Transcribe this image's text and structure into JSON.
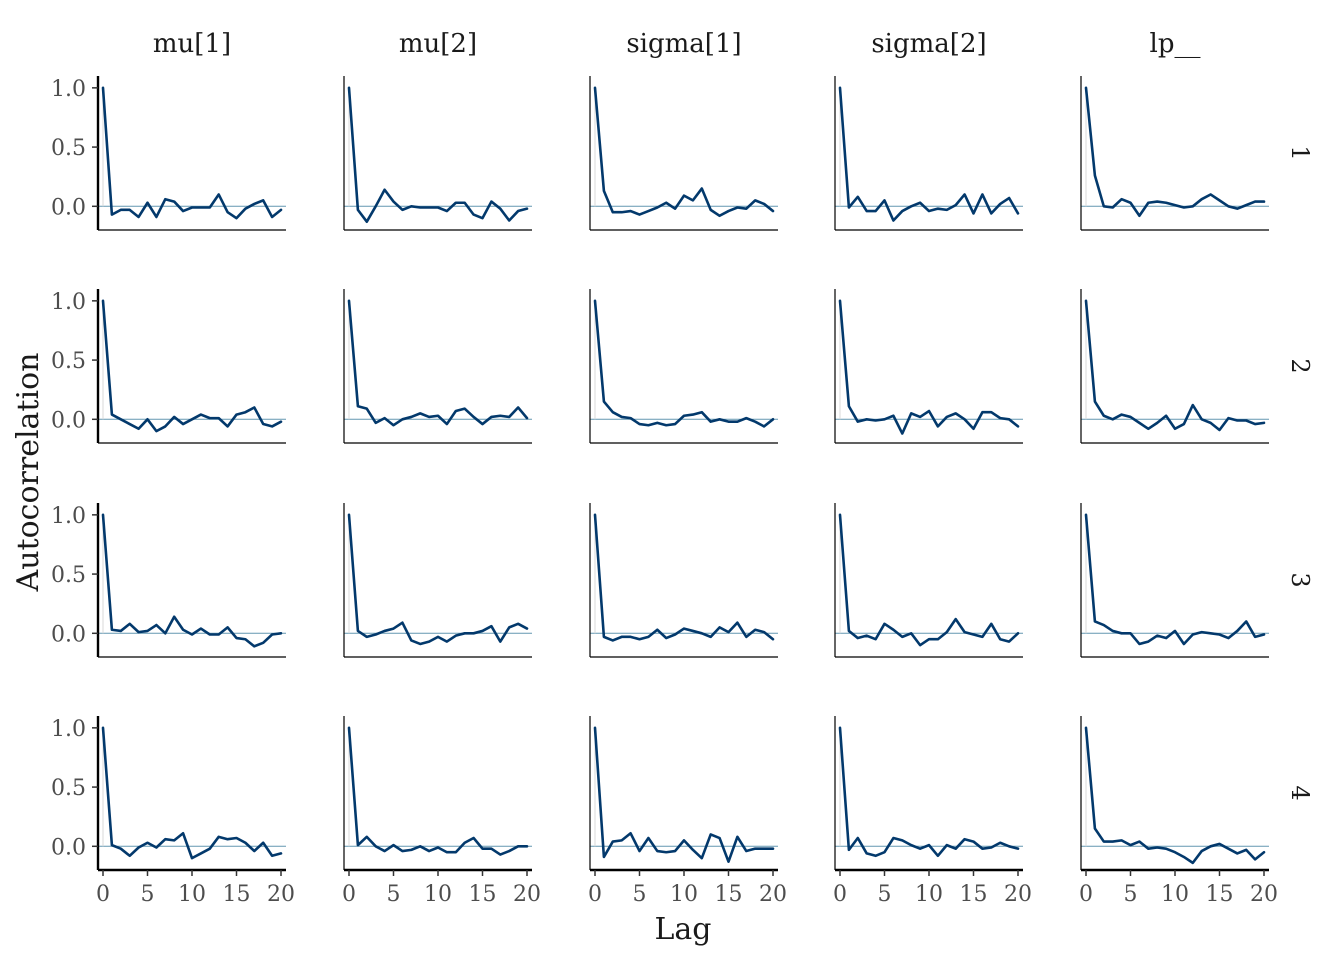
{
  "chart_data": {
    "type": "line",
    "xlabel": "Lag",
    "ylabel": "Autocorrelation",
    "columns": [
      "mu[1]",
      "mu[2]",
      "sigma[1]",
      "sigma[2]",
      "lp__"
    ],
    "rows": [
      "1",
      "2",
      "3",
      "4"
    ],
    "x": [
      0,
      1,
      2,
      3,
      4,
      5,
      6,
      7,
      8,
      9,
      10,
      11,
      12,
      13,
      14,
      15,
      16,
      17,
      18,
      19,
      20
    ],
    "xlim": [
      0,
      20
    ],
    "xticks": [
      0,
      5,
      10,
      15,
      20
    ],
    "ylim": [
      -0.2,
      1.1
    ],
    "yticks": [
      0.0,
      0.5,
      1.0
    ],
    "ytick_labels": [
      "0.0",
      "0.5",
      "1.0"
    ],
    "reference_line_y": 0.0,
    "series_color": "#03396c",
    "reference_color": "#6497b1",
    "panels": [
      [
        [
          1.0,
          -0.07,
          -0.03,
          -0.03,
          -0.09,
          0.03,
          -0.09,
          0.06,
          0.04,
          -0.04,
          -0.01,
          -0.01,
          -0.01,
          0.1,
          -0.05,
          -0.1,
          -0.02,
          0.02,
          0.05,
          -0.09,
          -0.03
        ],
        [
          1.0,
          -0.03,
          -0.13,
          0.0,
          0.14,
          0.04,
          -0.03,
          0.0,
          -0.01,
          -0.01,
          -0.01,
          -0.04,
          0.03,
          0.03,
          -0.07,
          -0.1,
          0.04,
          -0.02,
          -0.12,
          -0.04,
          -0.02
        ],
        [
          1.0,
          0.13,
          -0.05,
          -0.05,
          -0.04,
          -0.07,
          -0.04,
          -0.01,
          0.03,
          -0.02,
          0.09,
          0.05,
          0.15,
          -0.03,
          -0.08,
          -0.04,
          -0.01,
          -0.02,
          0.05,
          0.02,
          -0.04
        ],
        [
          1.0,
          -0.01,
          0.08,
          -0.04,
          -0.04,
          0.05,
          -0.12,
          -0.04,
          0.0,
          0.03,
          -0.04,
          -0.02,
          -0.03,
          0.01,
          0.1,
          -0.06,
          0.1,
          -0.06,
          0.02,
          0.07,
          -0.06
        ],
        [
          1.0,
          0.26,
          0.0,
          -0.01,
          0.06,
          0.03,
          -0.08,
          0.03,
          0.04,
          0.03,
          0.01,
          -0.01,
          0.0,
          0.06,
          0.1,
          0.05,
          0.0,
          -0.02,
          0.01,
          0.04,
          0.04
        ]
      ],
      [
        [
          1.0,
          0.04,
          0.0,
          -0.04,
          -0.08,
          0.0,
          -0.1,
          -0.06,
          0.02,
          -0.04,
          0.0,
          0.04,
          0.01,
          0.01,
          -0.06,
          0.04,
          0.06,
          0.1,
          -0.04,
          -0.06,
          -0.02
        ],
        [
          1.0,
          0.11,
          0.09,
          -0.03,
          0.01,
          -0.05,
          0.0,
          0.02,
          0.05,
          0.02,
          0.03,
          -0.04,
          0.07,
          0.09,
          0.02,
          -0.04,
          0.02,
          0.03,
          0.02,
          0.1,
          0.01
        ],
        [
          1.0,
          0.15,
          0.06,
          0.02,
          0.01,
          -0.04,
          -0.05,
          -0.03,
          -0.05,
          -0.04,
          0.03,
          0.04,
          0.06,
          -0.02,
          0.0,
          -0.02,
          -0.02,
          0.01,
          -0.02,
          -0.06,
          0.0
        ],
        [
          1.0,
          0.11,
          -0.02,
          0.0,
          -0.01,
          0.0,
          0.03,
          -0.12,
          0.05,
          0.02,
          0.07,
          -0.06,
          0.02,
          0.05,
          0.0,
          -0.08,
          0.06,
          0.06,
          0.01,
          0.0,
          -0.06
        ],
        [
          1.0,
          0.15,
          0.03,
          0.0,
          0.04,
          0.02,
          -0.03,
          -0.08,
          -0.03,
          0.03,
          -0.08,
          -0.04,
          0.12,
          0.0,
          -0.03,
          -0.09,
          0.01,
          -0.01,
          -0.01,
          -0.04,
          -0.03
        ]
      ],
      [
        [
          1.0,
          0.03,
          0.02,
          0.08,
          0.01,
          0.02,
          0.07,
          0.0,
          0.14,
          0.03,
          -0.01,
          0.04,
          -0.01,
          -0.01,
          0.05,
          -0.04,
          -0.05,
          -0.11,
          -0.08,
          -0.01,
          0.0
        ],
        [
          1.0,
          0.02,
          -0.03,
          -0.01,
          0.02,
          0.04,
          0.09,
          -0.06,
          -0.09,
          -0.07,
          -0.03,
          -0.07,
          -0.02,
          0.0,
          0.0,
          0.02,
          0.06,
          -0.07,
          0.05,
          0.08,
          0.04
        ],
        [
          1.0,
          -0.03,
          -0.06,
          -0.03,
          -0.03,
          -0.05,
          -0.03,
          0.03,
          -0.04,
          -0.01,
          0.04,
          0.02,
          0.0,
          -0.03,
          0.05,
          0.01,
          0.09,
          -0.03,
          0.03,
          0.01,
          -0.05
        ],
        [
          1.0,
          0.02,
          -0.04,
          -0.02,
          -0.05,
          0.08,
          0.03,
          -0.03,
          0.0,
          -0.1,
          -0.05,
          -0.05,
          0.01,
          0.12,
          0.01,
          -0.01,
          -0.03,
          0.08,
          -0.05,
          -0.07,
          0.0
        ],
        [
          1.0,
          0.1,
          0.07,
          0.02,
          0.0,
          0.0,
          -0.09,
          -0.07,
          -0.02,
          -0.04,
          0.02,
          -0.09,
          -0.01,
          0.01,
          0.0,
          -0.01,
          -0.04,
          0.02,
          0.1,
          -0.03,
          -0.01
        ]
      ],
      [
        [
          1.0,
          0.01,
          -0.02,
          -0.08,
          -0.01,
          0.03,
          -0.01,
          0.06,
          0.05,
          0.11,
          -0.1,
          -0.06,
          -0.02,
          0.08,
          0.06,
          0.07,
          0.03,
          -0.04,
          0.03,
          -0.08,
          -0.06
        ],
        [
          1.0,
          0.01,
          0.08,
          0.0,
          -0.04,
          0.01,
          -0.04,
          -0.03,
          0.0,
          -0.04,
          -0.01,
          -0.05,
          -0.05,
          0.03,
          0.07,
          -0.02,
          -0.02,
          -0.07,
          -0.04,
          0.0,
          0.0
        ],
        [
          1.0,
          -0.09,
          0.04,
          0.05,
          0.11,
          -0.04,
          0.07,
          -0.04,
          -0.05,
          -0.04,
          0.05,
          -0.03,
          -0.1,
          0.1,
          0.07,
          -0.13,
          0.08,
          -0.04,
          -0.02,
          -0.02,
          -0.02
        ],
        [
          1.0,
          -0.03,
          0.07,
          -0.06,
          -0.08,
          -0.05,
          0.07,
          0.05,
          0.01,
          -0.02,
          0.01,
          -0.08,
          0.01,
          -0.02,
          0.06,
          0.04,
          -0.02,
          -0.01,
          0.03,
          0.0,
          -0.02
        ],
        [
          1.0,
          0.15,
          0.04,
          0.04,
          0.05,
          0.01,
          0.04,
          -0.02,
          -0.01,
          -0.02,
          -0.05,
          -0.09,
          -0.14,
          -0.04,
          0.0,
          0.02,
          -0.02,
          -0.06,
          -0.03,
          -0.11,
          -0.05
        ]
      ]
    ]
  }
}
